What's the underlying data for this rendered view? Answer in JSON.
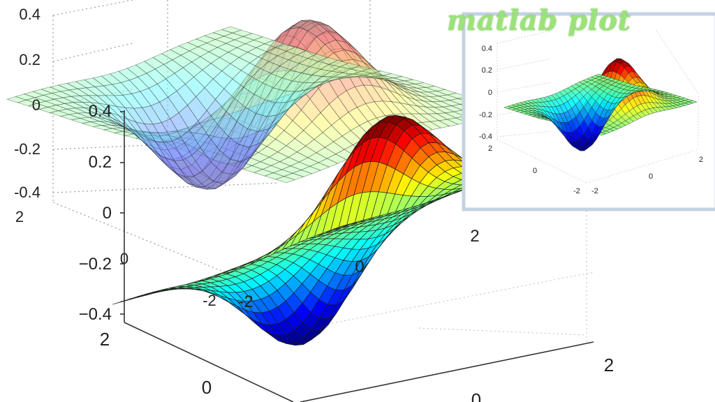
{
  "overlay_title": "matlab plot",
  "colors": {
    "title_green": "#9be27a",
    "inset_border": "#c4d2e4",
    "colormap": [
      "#00008f",
      "#0000ff",
      "#0080ff",
      "#00ffff",
      "#80ff80",
      "#ffff00",
      "#ff8000",
      "#ff0000",
      "#800000"
    ]
  },
  "chart_data": [
    {
      "type": "surface",
      "name_hint": "back surface, translucent",
      "function": "x*exp(-x^2-y^2)",
      "x_range": [
        -2,
        2
      ],
      "y_range": [
        -2,
        2
      ],
      "zlim": [
        -0.4,
        0.4
      ],
      "z_ticks": [
        "0.4",
        "0.2",
        "0",
        "-0.2",
        "-0.4"
      ],
      "xy_ticks": [
        "2",
        "0",
        "-2"
      ],
      "grid": true,
      "colormap": "jet"
    },
    {
      "type": "surface",
      "name_hint": "front surface, opaque",
      "function": "x*exp(-x^2-y^2)",
      "x_range": [
        -2,
        2
      ],
      "y_range": [
        -2,
        2
      ],
      "zlim": [
        -0.4,
        0.4
      ],
      "z_ticks": [
        "0.4",
        "0.2",
        "0",
        "−0.2",
        "−0.4"
      ],
      "y_ticks": [
        "2",
        "0",
        "-2"
      ],
      "x_ticks": [
        "-2",
        "0",
        "2"
      ],
      "grid": false,
      "colormap": "jet"
    },
    {
      "type": "surface",
      "name_hint": "inset window surface",
      "function": "x*exp(-x^2-y^2)",
      "x_range": [
        -2,
        2
      ],
      "y_range": [
        -2,
        2
      ],
      "zlim": [
        -0.4,
        0.4
      ],
      "z_ticks": [
        "0.4",
        "0.2",
        "0",
        "-0.2",
        "-0.4"
      ],
      "y_ticks": [
        "2",
        "0",
        "-2"
      ],
      "x_ticks": [
        "-2",
        "0",
        "2"
      ],
      "grid": true,
      "colormap": "jet"
    }
  ]
}
